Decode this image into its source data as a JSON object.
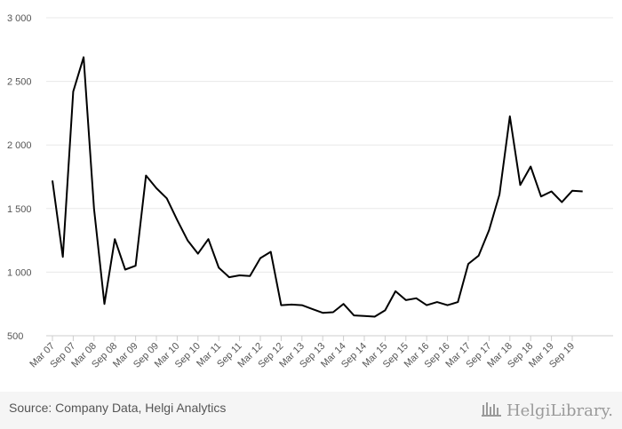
{
  "chart_data": {
    "type": "line",
    "title": "",
    "xlabel": "",
    "ylabel": "",
    "ylim": [
      500,
      3000
    ],
    "yticks": [
      500,
      1000,
      1500,
      2000,
      2500,
      3000
    ],
    "ytick_labels": [
      "500",
      "1 000",
      "1 500",
      "2 000",
      "2 500",
      "3 000"
    ],
    "grid": "horizontal",
    "categories": [
      "Mar 07",
      "Jun 07",
      "Sep 07",
      "Dec 07",
      "Mar 08",
      "Jun 08",
      "Sep 08",
      "Dec 08",
      "Mar 09",
      "Jun 09",
      "Sep 09",
      "Dec 09",
      "Mar 10",
      "Jun 10",
      "Sep 10",
      "Dec 10",
      "Mar 11",
      "Jun 11",
      "Sep 11",
      "Dec 11",
      "Mar 12",
      "Jun 12",
      "Sep 12",
      "Dec 12",
      "Mar 13",
      "Jun 13",
      "Sep 13",
      "Dec 13",
      "Mar 14",
      "Jun 14",
      "Sep 14",
      "Dec 14",
      "Mar 15",
      "Jun 15",
      "Sep 15",
      "Dec 15",
      "Mar 16",
      "Jun 16",
      "Sep 16",
      "Dec 16",
      "Mar 17",
      "Jun 17",
      "Sep 17",
      "Dec 17",
      "Mar 18",
      "Jun 18",
      "Sep 18",
      "Dec 18",
      "Mar 19",
      "Jun 19",
      "Sep 19",
      "Dec 19"
    ],
    "xtick_labels": [
      "Mar 07",
      "Sep 07",
      "Mar 08",
      "Sep 08",
      "Mar 09",
      "Sep 09",
      "Mar 10",
      "Sep 10",
      "Mar 11",
      "Sep 11",
      "Mar 12",
      "Sep 12",
      "Mar 13",
      "Sep 13",
      "Mar 14",
      "Sep 14",
      "Mar 15",
      "Sep 15",
      "Mar 16",
      "Sep 16",
      "Mar 17",
      "Sep 17",
      "Mar 18",
      "Sep 18",
      "Mar 19",
      "Sep 19"
    ],
    "series": [
      {
        "color": "#000000",
        "values": [
          1720,
          1120,
          2420,
          2690,
          1500,
          750,
          1260,
          1020,
          1050,
          1760,
          1660,
          1580,
          1410,
          1250,
          1145,
          1260,
          1035,
          960,
          975,
          970,
          1110,
          1160,
          740,
          745,
          740,
          710,
          680,
          685,
          750,
          660,
          655,
          650,
          700,
          850,
          780,
          795,
          740,
          765,
          740,
          765,
          1065,
          1130,
          1330,
          1610,
          2225,
          1685,
          1830,
          1595,
          1635,
          1550,
          1640,
          1635
        ]
      }
    ]
  },
  "footer": {
    "source": "Source: Company Data, Helgi Analytics",
    "brand": "HelgiLibrary."
  },
  "colors": {
    "line": "#000000",
    "grid": "#e8e8e8",
    "axis": "#cccccc",
    "footer_bg": "#f5f5f5"
  }
}
